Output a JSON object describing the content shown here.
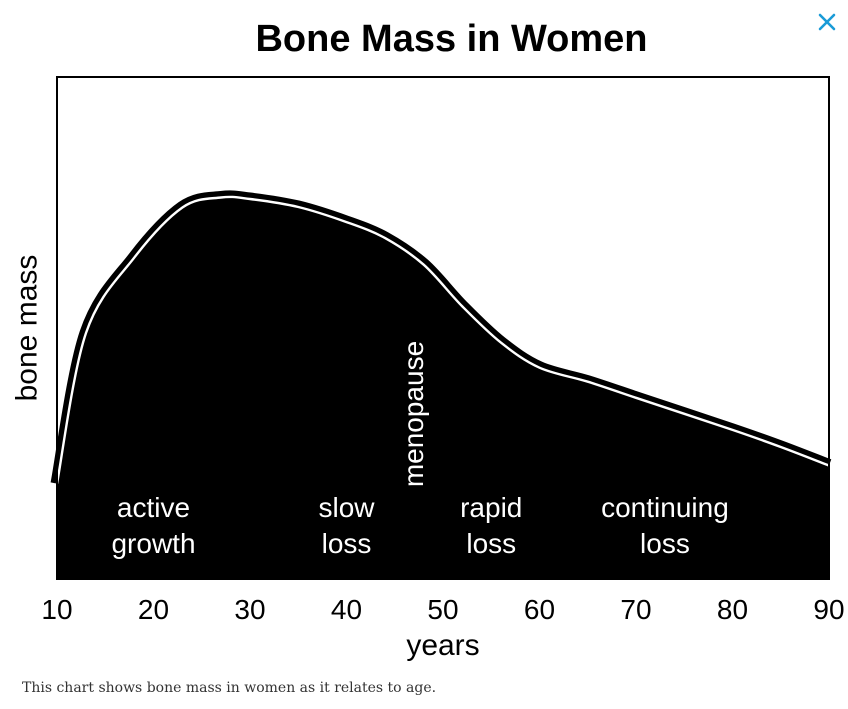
{
  "close_icon": "close-x-icon",
  "accent_color": "#1a9bd7",
  "caption": "This chart shows bone mass in women as it relates to age.",
  "chart_data": {
    "type": "area",
    "title": "Bone Mass in Women",
    "xlabel": "years",
    "ylabel": "bone mass",
    "xlim": [
      10,
      90
    ],
    "ylim": [
      0,
      100
    ],
    "x_ticks": [
      "10",
      "20",
      "30",
      "40",
      "50",
      "60",
      "70",
      "80",
      "90"
    ],
    "series": [
      {
        "x": [
          10,
          13,
          18,
          23,
          27,
          30,
          35,
          40,
          44,
          48,
          52,
          56,
          60,
          65,
          70,
          75,
          80,
          85,
          90
        ],
        "y": [
          19,
          49,
          64,
          74,
          76,
          75.7,
          74.1,
          71.1,
          67.9,
          62.6,
          54.3,
          47.1,
          42.1,
          39.3,
          36.1,
          32.9,
          29.7,
          26.3,
          22.6
        ]
      }
    ],
    "color": "#000000",
    "grid": false,
    "phases": [
      {
        "lines": [
          "active",
          "growth"
        ],
        "x": 20
      },
      {
        "lines": [
          "slow",
          "loss"
        ],
        "x": 40
      },
      {
        "lines": [
          "rapid",
          "loss"
        ],
        "x": 55
      },
      {
        "lines": [
          "continuing",
          "loss"
        ],
        "x": 73
      }
    ],
    "annotation": {
      "text": "menopause",
      "x": 48
    }
  }
}
